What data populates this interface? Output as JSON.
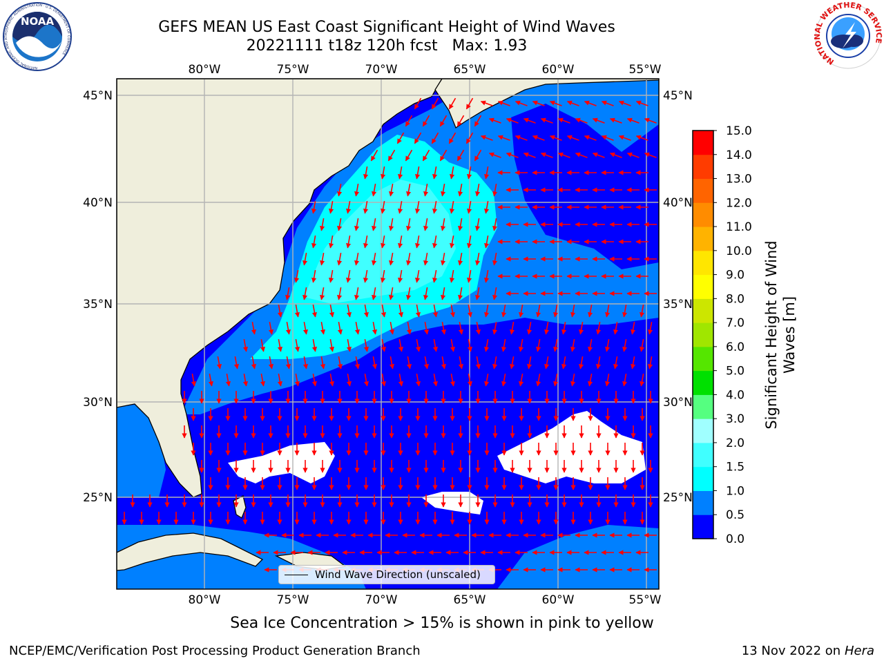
{
  "header": {
    "title_line1": "GEFS MEAN US East Coast Significant Height of Wind Waves",
    "title_line2": "20221111 t18z 120h fcst   Max: 1.93"
  },
  "logos": {
    "left": {
      "icon": "noaa-logo-icon",
      "text": "NOAA",
      "ring_text": "NATIONAL OCEANIC AND ATMOSPHERIC ADMINISTRATION · U.S. DEPARTMENT OF COMMERCE"
    },
    "right": {
      "icon": "nws-logo-icon",
      "ring_text": "NATIONAL WEATHER SERVICE"
    }
  },
  "map": {
    "lon_ticks": [
      "80°W",
      "75°W",
      "70°W",
      "65°W",
      "60°W",
      "55°W"
    ],
    "lat_ticks": [
      "45°N",
      "40°N",
      "35°N",
      "30°N",
      "25°N"
    ],
    "lon_values": [
      -80,
      -75,
      -70,
      -65,
      -60,
      -55
    ],
    "lat_values": [
      45,
      40,
      35,
      30,
      25
    ],
    "lon_range": [
      -85,
      -54.2
    ],
    "lat_range": [
      20.2,
      46.5
    ],
    "gridlines": true,
    "colors": {
      "land": "#efeedc",
      "arrow": "#ff0000",
      "coast": "#000000",
      "grid": "#b3b3b3"
    }
  },
  "legend": {
    "label": "Wind Wave Direction (unscaled)",
    "placement": "bottom-center"
  },
  "colorbar": {
    "label_line1": "Significant Height of Wind",
    "label_line2": "Waves [m]",
    "ticks": [
      "0.0",
      "0.5",
      "1.0",
      "1.5",
      "2.0",
      "3.0",
      "4.0",
      "5.0",
      "6.0",
      "7.0",
      "8.0",
      "9.0",
      "10.0",
      "11.0",
      "12.0",
      "13.0",
      "14.0",
      "15.0"
    ],
    "colors": [
      "#0000ff",
      "#0080ff",
      "#00ffff",
      "#40ffff",
      "#a0ffff",
      "#55ff80",
      "#00e000",
      "#55e600",
      "#a0e600",
      "#cce600",
      "#ffff00",
      "#ffe600",
      "#ffb300",
      "#ff8c00",
      "#ff6400",
      "#ff3c00",
      "#ff0000"
    ]
  },
  "ice_note": "Sea Ice Concentration > 15% is shown in pink to yellow",
  "footer": {
    "left": "NCEP/EMC/Verification Post Processing Product Generation Branch",
    "right_prefix": "13 Nov 2022 on",
    "right_machine": "Hera"
  }
}
